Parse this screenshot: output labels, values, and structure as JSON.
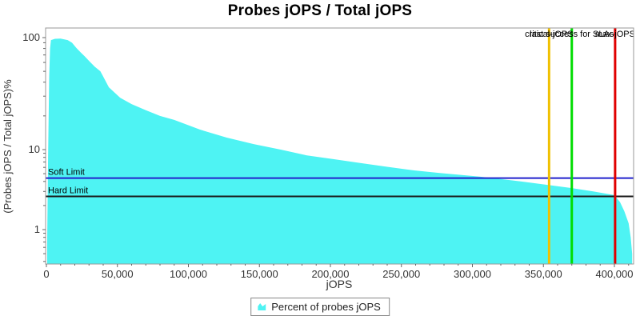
{
  "title": "Probes jOPS / Total jOPS",
  "legend": {
    "label": "Percent of probes jOPS"
  },
  "colors": {
    "series_fill": "#4EF3F3",
    "soft_limit": "#2222CC",
    "hard_limit": "#1A1A1A",
    "critical_jops_line": "#F0C000",
    "last_success_line": "#00DD00",
    "max_jops_line": "#E00000",
    "plot_border": "#999999",
    "tick": "#666666"
  },
  "chart_data": {
    "type": "area",
    "title": "Probes jOPS / Total jOPS",
    "xlabel": "jOPS",
    "ylabel": "(Probes jOPS / Total jOPS)%",
    "y_scale": "log",
    "grid": false,
    "xlim": [
      0,
      412600
    ],
    "ylim": [
      0.37,
      120
    ],
    "x_ticks": [
      0,
      50000,
      100000,
      150000,
      200000,
      250000,
      300000,
      350000,
      400000
    ],
    "x_tick_labels": [
      "0",
      "50,000",
      "100,000",
      "150,000",
      "200,000",
      "250,000",
      "300,000",
      "350,000",
      "400,000"
    ],
    "x_minor_tick_step": 10000,
    "y_ticks": [
      100,
      10,
      1
    ],
    "y_tick_labels": [
      "100",
      "10",
      "1"
    ],
    "y_minor_ticks": [
      90,
      80,
      70,
      60,
      50,
      40,
      30,
      20,
      9,
      8,
      7,
      6,
      5,
      4,
      3,
      2,
      0.9,
      0.8,
      0.7,
      0.6,
      0.5,
      0.4
    ],
    "legend_position": "bottom",
    "series": [
      {
        "name": "Percent of probes jOPS",
        "color": "#4EF3F3",
        "points": [
          [
            500,
            0.6
          ],
          [
            1200,
            8
          ],
          [
            2000,
            45
          ],
          [
            2600,
            80
          ],
          [
            3200,
            95
          ],
          [
            6000,
            97.5
          ],
          [
            10000,
            98
          ],
          [
            15000,
            95
          ],
          [
            18000,
            90
          ],
          [
            21000,
            81
          ],
          [
            24000,
            74
          ],
          [
            27000,
            68
          ],
          [
            30000,
            62
          ],
          [
            34000,
            55
          ],
          [
            38000,
            50
          ],
          [
            44000,
            36
          ],
          [
            52000,
            29
          ],
          [
            60000,
            25.5
          ],
          [
            70000,
            22.5
          ],
          [
            80000,
            20
          ],
          [
            90000,
            18.4
          ],
          [
            108000,
            15.1
          ],
          [
            127000,
            12.8
          ],
          [
            146000,
            11.2
          ],
          [
            165000,
            10.0
          ],
          [
            183000,
            8.5
          ],
          [
            202000,
            7.6
          ],
          [
            221000,
            6.8
          ],
          [
            240000,
            6.1
          ],
          [
            259000,
            5.5
          ],
          [
            277000,
            5.1
          ],
          [
            305000,
            4.6
          ],
          [
            334000,
            4.0
          ],
          [
            354000,
            3.6
          ],
          [
            370000,
            3.3
          ],
          [
            385000,
            3.0
          ],
          [
            400000,
            2.7
          ],
          [
            404000,
            2.2
          ],
          [
            407000,
            1.7
          ],
          [
            410000,
            1.2
          ],
          [
            411500,
            0.8
          ],
          [
            412500,
            0.5
          ]
        ]
      }
    ],
    "h_lines": [
      {
        "label": "Soft Limit",
        "value": 4.4,
        "color": "#2222CC"
      },
      {
        "label": "Hard Limit",
        "value": 2.6,
        "color": "#1A1A1A"
      }
    ],
    "v_lines": [
      {
        "label": "critical-jOPS",
        "value": 354000,
        "color": "#F0C000"
      },
      {
        "label": "last success for SLAs",
        "value": 370000,
        "color": "#00DD00"
      },
      {
        "label": "max-jOPS",
        "value": 400500,
        "color": "#E00000"
      }
    ]
  }
}
